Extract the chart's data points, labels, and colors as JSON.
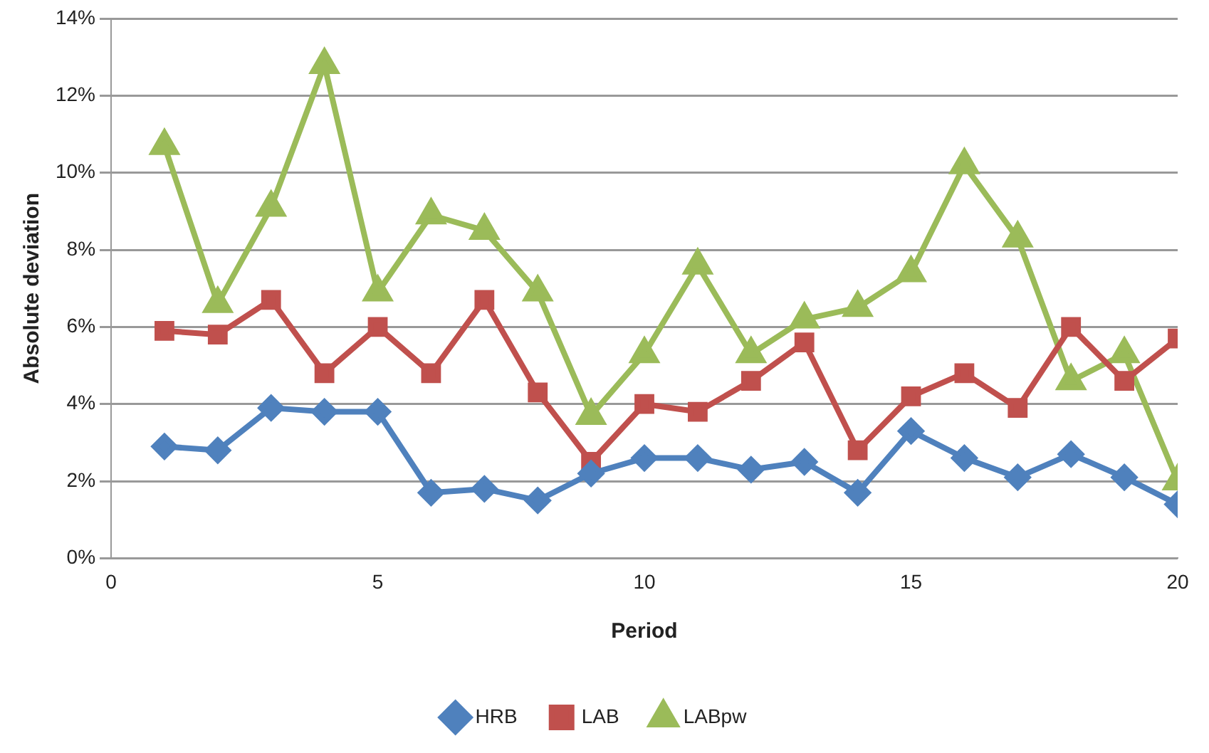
{
  "chart_data": {
    "type": "line",
    "xlabel": "Period",
    "ylabel": "Absolute deviation",
    "x": [
      1,
      2,
      3,
      4,
      5,
      6,
      7,
      8,
      9,
      10,
      11,
      12,
      13,
      14,
      15,
      16,
      17,
      18,
      19,
      20
    ],
    "series": [
      {
        "name": "HRB",
        "color": "#4f81bd",
        "marker": "diamond",
        "values": [
          2.9,
          2.8,
          3.9,
          3.8,
          3.8,
          1.7,
          1.8,
          1.5,
          2.2,
          2.6,
          2.6,
          2.3,
          2.5,
          1.7,
          3.3,
          2.6,
          2.1,
          2.7,
          2.1,
          1.4
        ]
      },
      {
        "name": "LAB",
        "color": "#c0504d",
        "marker": "square",
        "values": [
          5.9,
          5.8,
          6.7,
          4.8,
          6.0,
          4.8,
          6.7,
          4.3,
          2.5,
          4.0,
          3.8,
          4.6,
          5.6,
          2.8,
          4.2,
          4.8,
          3.9,
          6.0,
          4.6,
          5.7
        ]
      },
      {
        "name": "LABpw",
        "color": "#9bbb59",
        "marker": "triangle",
        "values": [
          10.7,
          6.6,
          9.1,
          12.8,
          6.9,
          8.9,
          8.5,
          6.9,
          3.7,
          5.3,
          7.6,
          5.3,
          6.2,
          6.5,
          7.4,
          10.2,
          8.3,
          4.6,
          5.3,
          2.0
        ]
      }
    ],
    "xlim": [
      0,
      20
    ],
    "xticks": [
      0,
      5,
      10,
      15,
      20
    ],
    "ylim": [
      0,
      14
    ],
    "yticks": [
      {
        "value": 0,
        "label": "0%"
      },
      {
        "value": 2,
        "label": "2%"
      },
      {
        "value": 4,
        "label": "4%"
      },
      {
        "value": 6,
        "label": "6%"
      },
      {
        "value": 8,
        "label": "8%"
      },
      {
        "value": 10,
        "label": "10%"
      },
      {
        "value": 12,
        "label": "12%"
      },
      {
        "value": 14,
        "label": "14%"
      }
    ],
    "grid": "y",
    "legend": "bottom",
    "line_style": "solid"
  }
}
